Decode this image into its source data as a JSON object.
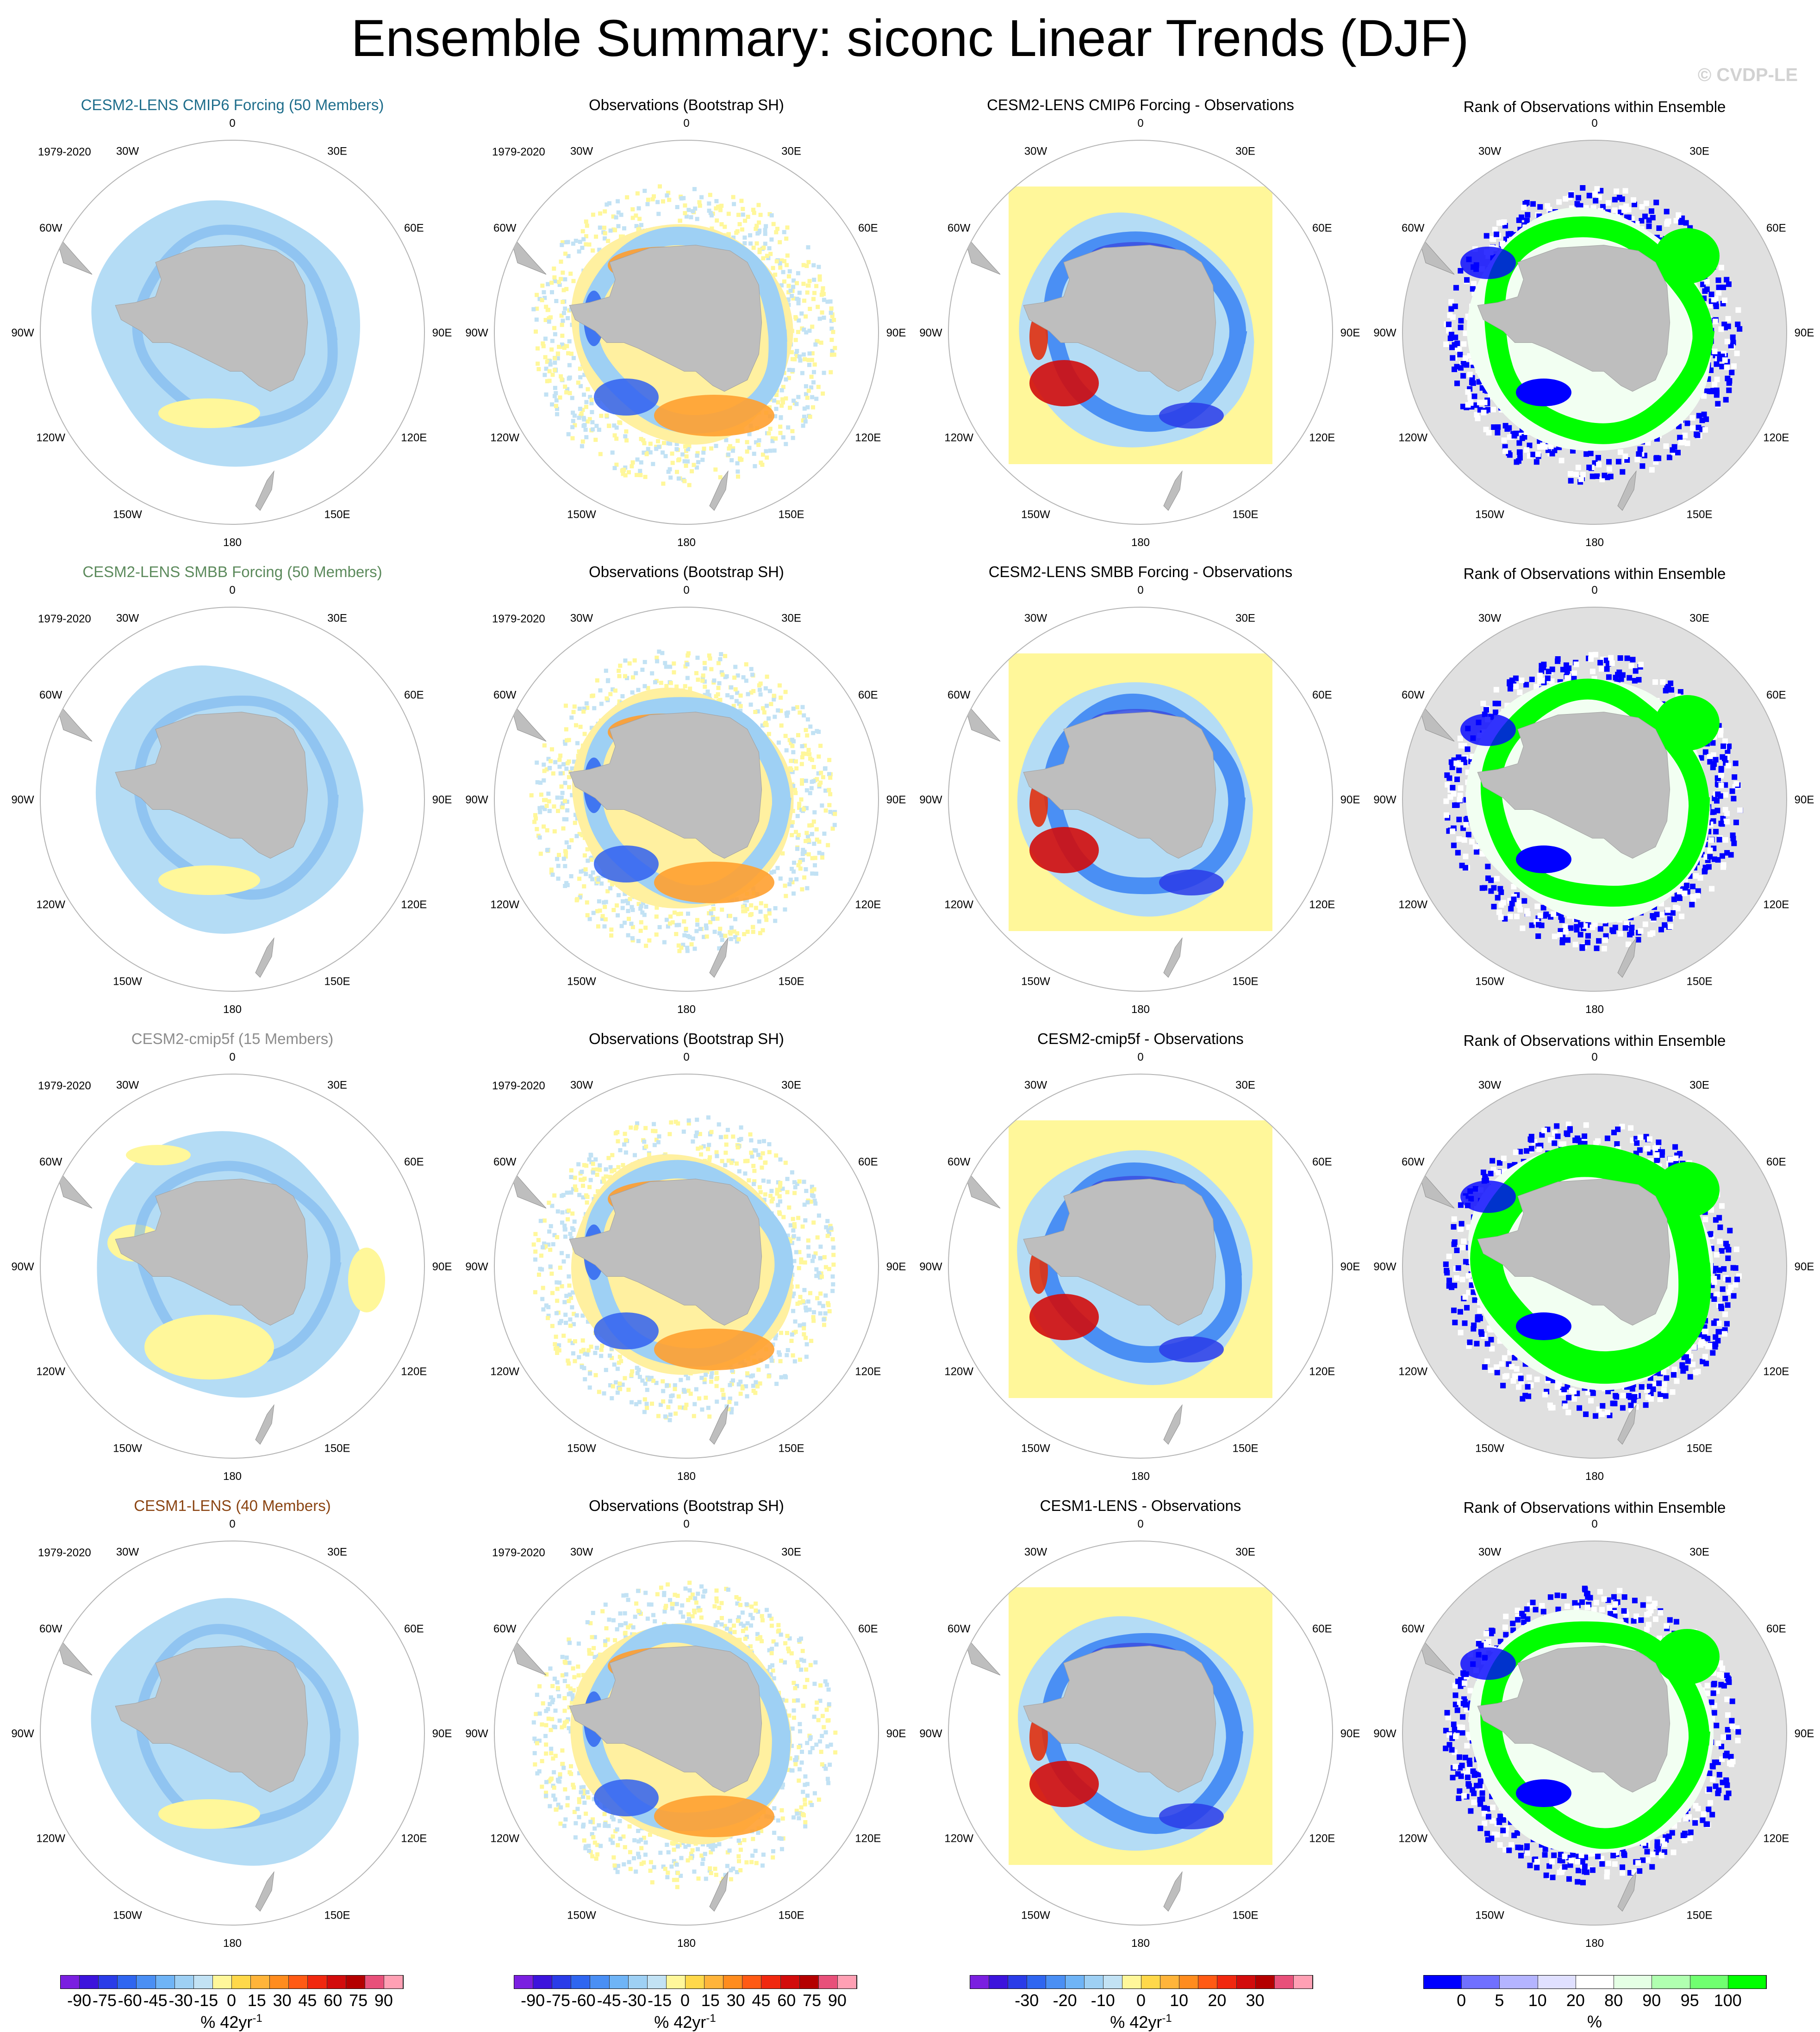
{
  "title": "Ensemble Summary: siconc Linear Trends (DJF)",
  "credit": "© CVDP-LE",
  "longitude_labels": [
    "0",
    "30E",
    "60E",
    "90E",
    "120E",
    "150E",
    "180",
    "150W",
    "120W",
    "90W",
    "60W",
    "30W"
  ],
  "panel_types": {
    "ensemble": "ensemble mean trend",
    "obs": "observed trend",
    "diff": "difference",
    "rank": "rank"
  },
  "rows": [
    {
      "model_title": "CESM2-LENS CMIP6 Forcing (50 Members)",
      "model_color": "#1f6e8c",
      "period": "1979-2020",
      "obs_title": "Observations (Bootstrap SH)",
      "obs_period": "1979-2020",
      "diff_title": "CESM2-LENS CMIP6 Forcing - Observations",
      "rank_title": "Rank of Observations within Ensemble"
    },
    {
      "model_title": "CESM2-LENS SMBB Forcing (50 Members)",
      "model_color": "#5c8a5c",
      "period": "1979-2020",
      "obs_title": "Observations (Bootstrap SH)",
      "obs_period": "1979-2020",
      "diff_title": "CESM2-LENS SMBB Forcing - Observations",
      "rank_title": "Rank of Observations within Ensemble"
    },
    {
      "model_title": "CESM2-cmip5f (15 Members)",
      "model_color": "#8c8c8c",
      "period": "1979-2020",
      "obs_title": "Observations (Bootstrap SH)",
      "obs_period": "1979-2020",
      "diff_title": "CESM2-cmip5f - Observations",
      "rank_title": "Rank of Observations within Ensemble"
    },
    {
      "model_title": "CESM1-LENS (40 Members)",
      "model_color": "#8b4513",
      "period": "1979-2020",
      "obs_title": "Observations (Bootstrap SH)",
      "obs_period": "1979-2020",
      "diff_title": "CESM1-LENS - Observations",
      "rank_title": "Rank of Observations within Ensemble"
    }
  ],
  "colorbars": [
    {
      "units": "% 42yr",
      "units_sup": "-1",
      "colors": [
        "#7a1fe0",
        "#3c14dc",
        "#2a3ce8",
        "#2f66f0",
        "#4a8ff4",
        "#6fb4f6",
        "#9ed0f4",
        "#c2e2f4",
        "#fff79a",
        "#ffd84a",
        "#ffb43a",
        "#ff8c1e",
        "#ff5a14",
        "#f0280f",
        "#d20c0c",
        "#b40000",
        "#e8507a",
        "#ffa0b4"
      ],
      "ticks": [
        "-90",
        "-45",
        "-30",
        "-15",
        "0",
        "15",
        "30",
        "45",
        "60",
        "75",
        "90"
      ],
      "tick_list": [
        "-90",
        "-75",
        "-60",
        "-45",
        "-30",
        "-15",
        "0",
        "15",
        "30",
        "45",
        "60",
        "75",
        "90"
      ]
    },
    {
      "units": "% 42yr",
      "units_sup": "-1",
      "colors": [
        "#7a1fe0",
        "#3c14dc",
        "#2a3ce8",
        "#2f66f0",
        "#4a8ff4",
        "#6fb4f6",
        "#9ed0f4",
        "#c2e2f4",
        "#fff79a",
        "#ffd84a",
        "#ffb43a",
        "#ff8c1e",
        "#ff5a14",
        "#f0280f",
        "#d20c0c",
        "#b40000",
        "#e8507a",
        "#ffa0b4"
      ],
      "tick_list": [
        "-90",
        "-75",
        "-60",
        "-45",
        "-30",
        "-15",
        "0",
        "15",
        "30",
        "45",
        "60",
        "75",
        "90"
      ]
    },
    {
      "units": "% 42yr",
      "units_sup": "-1",
      "colors": [
        "#7a1fe0",
        "#3c14dc",
        "#2a3ce8",
        "#2f66f0",
        "#4a8ff4",
        "#6fb4f6",
        "#9ed0f4",
        "#c2e2f4",
        "#fff79a",
        "#ffd84a",
        "#ffb43a",
        "#ff8c1e",
        "#ff5a14",
        "#f0280f",
        "#d20c0c",
        "#b40000",
        "#e8507a",
        "#ffa0b4"
      ],
      "tick_list": [
        "-30",
        "-20",
        "-10",
        "0",
        "10",
        "20",
        "30"
      ]
    },
    {
      "units": "%",
      "colors": [
        "#0000ff",
        "#7070ff",
        "#b4b4ff",
        "#e0e0ff",
        "#ffffff",
        "#e4ffe4",
        "#b0ffb0",
        "#70ff70",
        "#00ff00"
      ],
      "tick_list": [
        "0",
        "5",
        "10",
        "20",
        "80",
        "90",
        "95",
        "100"
      ]
    }
  ]
}
